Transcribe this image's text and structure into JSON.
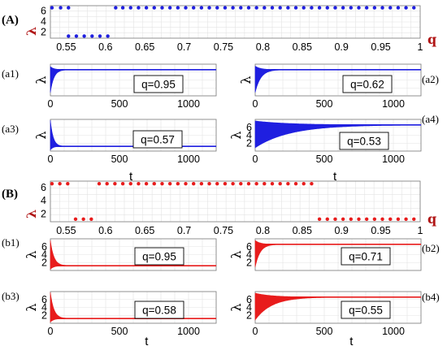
{
  "figure": {
    "panel_A_label": "(A)",
    "panel_B_label": "(B)",
    "lambda_symbol": "λ",
    "q_symbol": "q",
    "t_symbol": "t",
    "colors": {
      "A": "#1f1fe0",
      "B": "#e81c1c",
      "label_dark_red": "#b01515"
    }
  },
  "chart_data": [
    {
      "id": "A",
      "type": "scatter",
      "color": "#1f1fe0",
      "label": "(A)",
      "ylabel": "λ",
      "xlabel": "q",
      "xlim": [
        0.53,
        1.0
      ],
      "ylim": [
        0.8,
        7.0
      ],
      "xticks": [
        "0.55",
        "0.6",
        "0.65",
        "0.7",
        "0.75",
        "0.8",
        "0.85",
        "0.9",
        "0.95",
        "1"
      ],
      "yticks": [
        "2",
        "4",
        "6"
      ],
      "points": [
        [
          0.532,
          6.6
        ],
        [
          0.543,
          6.6
        ],
        [
          0.553,
          6.6
        ],
        [
          0.553,
          1.2
        ],
        [
          0.563,
          1.2
        ],
        [
          0.573,
          1.2
        ],
        [
          0.583,
          1.2
        ],
        [
          0.593,
          1.2
        ],
        [
          0.603,
          1.2
        ],
        [
          0.613,
          6.6
        ],
        [
          0.622,
          6.6
        ],
        [
          0.632,
          6.6
        ],
        [
          0.642,
          6.6
        ],
        [
          0.652,
          6.6
        ],
        [
          0.662,
          6.6
        ],
        [
          0.672,
          6.6
        ],
        [
          0.682,
          6.6
        ],
        [
          0.692,
          6.6
        ],
        [
          0.702,
          6.6
        ],
        [
          0.712,
          6.6
        ],
        [
          0.722,
          6.6
        ],
        [
          0.732,
          6.6
        ],
        [
          0.742,
          6.6
        ],
        [
          0.752,
          6.6
        ],
        [
          0.762,
          6.6
        ],
        [
          0.772,
          6.6
        ],
        [
          0.782,
          6.6
        ],
        [
          0.792,
          6.6
        ],
        [
          0.802,
          6.6
        ],
        [
          0.812,
          6.6
        ],
        [
          0.822,
          6.6
        ],
        [
          0.832,
          6.6
        ],
        [
          0.842,
          6.6
        ],
        [
          0.852,
          6.6
        ],
        [
          0.862,
          6.6
        ],
        [
          0.872,
          6.6
        ],
        [
          0.882,
          6.6
        ],
        [
          0.892,
          6.6
        ],
        [
          0.902,
          6.6
        ],
        [
          0.912,
          6.6
        ],
        [
          0.922,
          6.6
        ],
        [
          0.932,
          6.6
        ],
        [
          0.942,
          6.6
        ],
        [
          0.952,
          6.6
        ],
        [
          0.962,
          6.6
        ],
        [
          0.972,
          6.6
        ],
        [
          0.982,
          6.6
        ],
        [
          0.992,
          6.6
        ]
      ]
    },
    {
      "id": "a1",
      "type": "line",
      "color": "#1f1fe0",
      "label": "(a1)",
      "ylabel": "λ",
      "annotation": "q=0.95",
      "xlim": [
        0,
        1200
      ],
      "ylim": [
        0,
        8
      ],
      "xticks": [
        "0",
        "500",
        "1000"
      ],
      "yticks": [],
      "final_value": 6.6,
      "initial_peak": 7.4,
      "envelope_decay": 25
    },
    {
      "id": "a2",
      "type": "line",
      "color": "#1f1fe0",
      "label": "(a2)",
      "ylabel": "λ",
      "annotation": "q=0.62",
      "xlim": [
        0,
        1200
      ],
      "ylim": [
        0,
        8
      ],
      "xticks": [
        "0",
        "500",
        "1000"
      ],
      "yticks": [],
      "final_value": 6.6,
      "initial_peak": 7.5,
      "envelope_decay": 40
    },
    {
      "id": "a3",
      "type": "line",
      "color": "#1f1fe0",
      "label": "(a3)",
      "ylabel": "λ",
      "annotation": "q=0.57",
      "xlim": [
        0,
        1200
      ],
      "ylim": [
        0,
        8
      ],
      "xticks": [
        "0",
        "500",
        "1000"
      ],
      "yticks": [],
      "final_value": 1.2,
      "initial_peak": 7.8,
      "envelope_decay": 20
    },
    {
      "id": "a4",
      "type": "line",
      "color": "#1f1fe0",
      "label": "(a4)",
      "ylabel": "λ",
      "annotation": "q=0.53",
      "xlabel": "t",
      "xlim": [
        0,
        1200
      ],
      "ylim": [
        0,
        8
      ],
      "xticks": [
        "0",
        "500",
        "1000"
      ],
      "yticks": [
        "2",
        "4",
        "6"
      ],
      "final_value": 6.6,
      "initial_peak": 7.6,
      "envelope_decay": 250
    },
    {
      "id": "B",
      "type": "scatter",
      "color": "#e81c1c",
      "label": "(B)",
      "ylabel": "λ",
      "xlabel": "q",
      "xlim": [
        0.53,
        1.0
      ],
      "ylim": [
        0.8,
        7.0
      ],
      "xticks": [
        "0.55",
        "0.6",
        "0.65",
        "0.7",
        "0.75",
        "0.8",
        "0.85",
        "0.9",
        "0.95",
        "1"
      ],
      "yticks": [
        "2",
        "4",
        "6"
      ],
      "points": [
        [
          0.532,
          6.6
        ],
        [
          0.542,
          6.6
        ],
        [
          0.552,
          6.6
        ],
        [
          0.562,
          1.2
        ],
        [
          0.572,
          1.2
        ],
        [
          0.582,
          1.2
        ],
        [
          0.592,
          6.6
        ],
        [
          0.602,
          6.6
        ],
        [
          0.612,
          6.6
        ],
        [
          0.622,
          6.6
        ],
        [
          0.632,
          6.6
        ],
        [
          0.642,
          6.6
        ],
        [
          0.652,
          6.6
        ],
        [
          0.662,
          6.6
        ],
        [
          0.672,
          6.6
        ],
        [
          0.682,
          6.6
        ],
        [
          0.692,
          6.6
        ],
        [
          0.702,
          6.6
        ],
        [
          0.712,
          6.6
        ],
        [
          0.722,
          6.6
        ],
        [
          0.732,
          6.6
        ],
        [
          0.742,
          6.6
        ],
        [
          0.752,
          6.6
        ],
        [
          0.762,
          6.6
        ],
        [
          0.772,
          6.6
        ],
        [
          0.782,
          6.6
        ],
        [
          0.792,
          6.6
        ],
        [
          0.802,
          6.6
        ],
        [
          0.812,
          6.6
        ],
        [
          0.822,
          6.6
        ],
        [
          0.832,
          6.6
        ],
        [
          0.842,
          6.6
        ],
        [
          0.852,
          6.6
        ],
        [
          0.862,
          6.6
        ],
        [
          0.872,
          1.2
        ],
        [
          0.882,
          1.2
        ],
        [
          0.892,
          1.2
        ],
        [
          0.902,
          1.2
        ],
        [
          0.912,
          1.2
        ],
        [
          0.922,
          1.2
        ],
        [
          0.932,
          1.2
        ],
        [
          0.942,
          1.2
        ],
        [
          0.952,
          1.2
        ],
        [
          0.962,
          1.2
        ],
        [
          0.972,
          1.2
        ],
        [
          0.982,
          1.2
        ],
        [
          0.992,
          1.2
        ]
      ]
    },
    {
      "id": "b1",
      "type": "line",
      "color": "#e81c1c",
      "label": "(b1)",
      "ylabel": "λ",
      "annotation": "q=0.95",
      "xlim": [
        0,
        1200
      ],
      "ylim": [
        0,
        8
      ],
      "xticks": [],
      "yticks": [
        "2",
        "4",
        "6"
      ],
      "final_value": 1.2,
      "initial_peak": 7.6,
      "envelope_decay": 25
    },
    {
      "id": "b2",
      "type": "line",
      "color": "#e81c1c",
      "label": "(b2)",
      "ylabel": "λ",
      "annotation": "q=0.71",
      "xlim": [
        0,
        1200
      ],
      "ylim": [
        0,
        8
      ],
      "xticks": [],
      "yticks": [
        "2",
        "4",
        "6"
      ],
      "final_value": 6.6,
      "initial_peak": 7.6,
      "envelope_decay": 35
    },
    {
      "id": "b3",
      "type": "line",
      "color": "#e81c1c",
      "label": "(b3)",
      "ylabel": "λ",
      "annotation": "q=0.58",
      "xlim": [
        0,
        1200
      ],
      "ylim": [
        0,
        8
      ],
      "xticks": [
        "0",
        "500",
        "1000"
      ],
      "yticks": [
        "2",
        "4",
        "6"
      ],
      "xlabel": "t",
      "final_value": 1.2,
      "initial_peak": 7.8,
      "envelope_decay": 25
    },
    {
      "id": "b4",
      "type": "line",
      "color": "#e81c1c",
      "label": "(b4)",
      "ylabel": "λ",
      "annotation": "q=0.55",
      "xlabel": "t",
      "xlim": [
        0,
        1200
      ],
      "ylim": [
        0,
        8
      ],
      "xticks": [
        "0",
        "500",
        "1000"
      ],
      "yticks": [
        "2",
        "4",
        "6"
      ],
      "final_value": 6.6,
      "initial_peak": 7.6,
      "envelope_decay": 120
    }
  ]
}
